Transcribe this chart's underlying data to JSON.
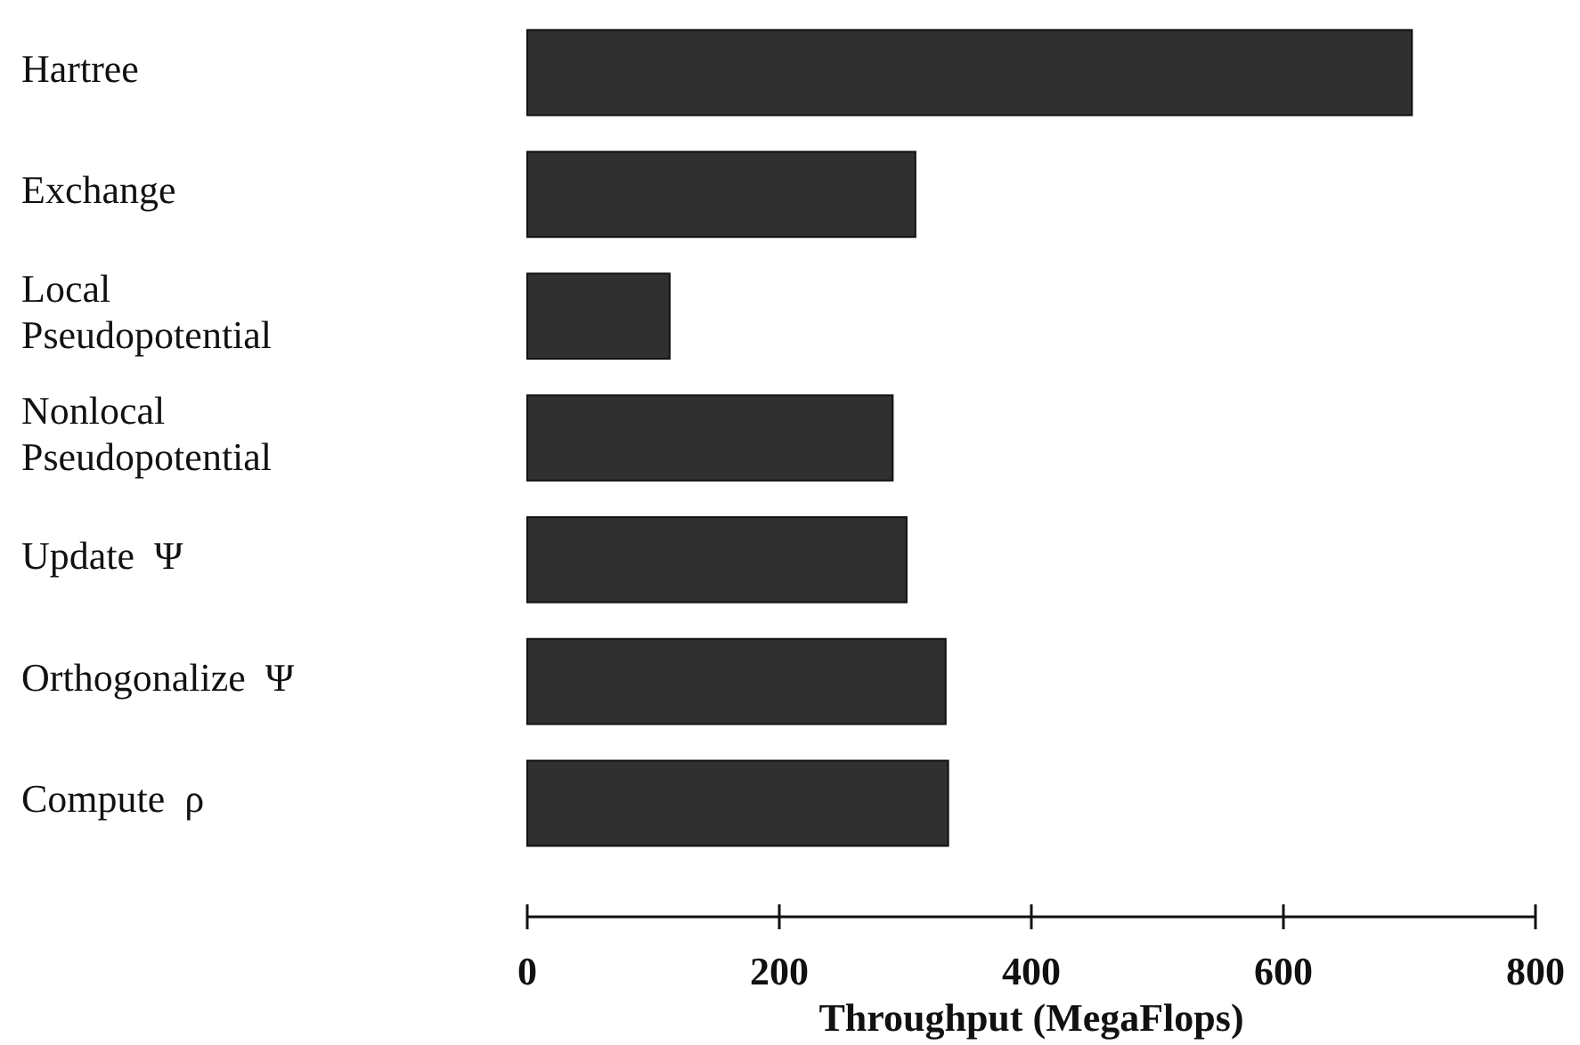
{
  "chart_data": {
    "type": "bar",
    "orientation": "horizontal",
    "xlabel": "Throughput (MegaFlops)",
    "categories": [
      "Hartree",
      "Exchange",
      "Local\nPseudopotential",
      "Nonlocal\nPseudopotential",
      "Update  Ψ",
      "Orthogonalize  Ψ",
      "Compute  ρ"
    ],
    "values": [
      702,
      308,
      113,
      290,
      301,
      332,
      334
    ],
    "color": "#303030",
    "xlim": [
      0,
      800
    ],
    "xticks": [
      0,
      200,
      400,
      600,
      800
    ],
    "grid": false
  }
}
